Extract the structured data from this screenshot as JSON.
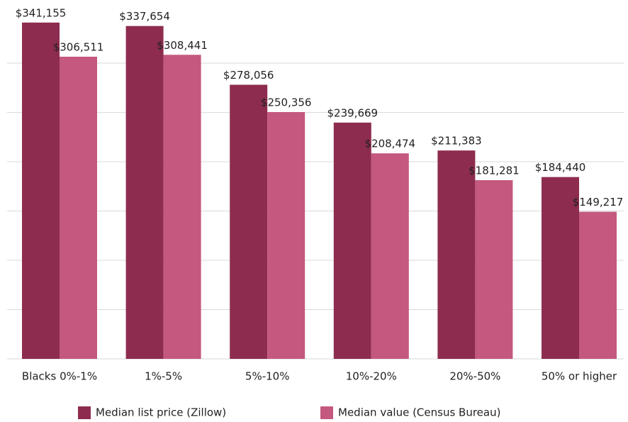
{
  "chart_data": {
    "type": "bar",
    "categories": [
      "Blacks 0%-1%",
      "1%-5%",
      "5%-10%",
      "10%-20%",
      "20%-50%",
      "50% or higher"
    ],
    "series": [
      {
        "name": "Median list price (Zillow)",
        "color": "#8e2c50",
        "values": [
          341155,
          337654,
          278056,
          239669,
          211383,
          184440
        ],
        "value_labels": [
          "$341,155",
          "$337,654",
          "$278,056",
          "$239,669",
          "$211,383",
          "$184,440"
        ]
      },
      {
        "name": "Median value (Census Bureau)",
        "color": "#c4587e",
        "values": [
          306511,
          308441,
          250356,
          208474,
          181281,
          149217
        ],
        "value_labels": [
          "$306,511",
          "$308,441",
          "$250,356",
          "$208,474",
          "$181,281",
          "$149,217"
        ]
      }
    ],
    "ylim": [
      0,
      350000
    ],
    "yticks": [
      0,
      50000,
      100000,
      150000,
      200000,
      250000,
      300000
    ],
    "grid": true
  }
}
